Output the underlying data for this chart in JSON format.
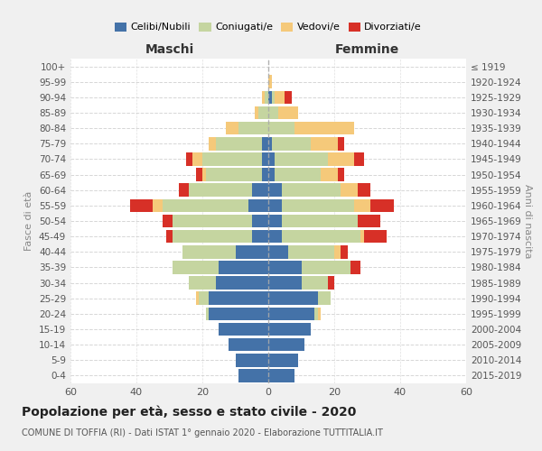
{
  "age_groups": [
    "0-4",
    "5-9",
    "10-14",
    "15-19",
    "20-24",
    "25-29",
    "30-34",
    "35-39",
    "40-44",
    "45-49",
    "50-54",
    "55-59",
    "60-64",
    "65-69",
    "70-74",
    "75-79",
    "80-84",
    "85-89",
    "90-94",
    "95-99",
    "100+"
  ],
  "birth_years": [
    "2015-2019",
    "2010-2014",
    "2005-2009",
    "2000-2004",
    "1995-1999",
    "1990-1994",
    "1985-1989",
    "1980-1984",
    "1975-1979",
    "1970-1974",
    "1965-1969",
    "1960-1964",
    "1955-1959",
    "1950-1954",
    "1945-1949",
    "1940-1944",
    "1935-1939",
    "1930-1934",
    "1925-1929",
    "1920-1924",
    "≤ 1919"
  ],
  "male": {
    "celibi": [
      9,
      10,
      12,
      15,
      18,
      18,
      16,
      15,
      10,
      5,
      5,
      6,
      5,
      2,
      2,
      2,
      0,
      0,
      0,
      0,
      0
    ],
    "coniugati": [
      0,
      0,
      0,
      0,
      1,
      3,
      8,
      14,
      16,
      24,
      24,
      26,
      19,
      17,
      18,
      14,
      9,
      3,
      1,
      0,
      0
    ],
    "vedovi": [
      0,
      0,
      0,
      0,
      0,
      1,
      0,
      0,
      0,
      0,
      0,
      3,
      0,
      1,
      3,
      2,
      4,
      1,
      1,
      0,
      0
    ],
    "divorziati": [
      0,
      0,
      0,
      0,
      0,
      0,
      0,
      0,
      0,
      2,
      3,
      7,
      3,
      2,
      2,
      0,
      0,
      0,
      0,
      0,
      0
    ]
  },
  "female": {
    "nubili": [
      8,
      9,
      11,
      13,
      14,
      15,
      10,
      10,
      6,
      4,
      4,
      4,
      4,
      2,
      2,
      1,
      0,
      0,
      1,
      0,
      0
    ],
    "coniugate": [
      0,
      0,
      0,
      0,
      1,
      4,
      8,
      15,
      14,
      24,
      23,
      22,
      18,
      14,
      16,
      12,
      8,
      3,
      1,
      0,
      0
    ],
    "vedove": [
      0,
      0,
      0,
      0,
      1,
      0,
      0,
      0,
      2,
      1,
      0,
      5,
      5,
      5,
      8,
      8,
      18,
      6,
      3,
      1,
      0
    ],
    "divorziate": [
      0,
      0,
      0,
      0,
      0,
      0,
      2,
      3,
      2,
      7,
      7,
      7,
      4,
      2,
      3,
      2,
      0,
      0,
      2,
      0,
      0
    ]
  },
  "colors": {
    "celibi": "#4472a8",
    "coniugati": "#c5d5a0",
    "vedovi": "#f5c97a",
    "divorziati": "#d73027"
  },
  "xlim": 60,
  "title": "Popolazione per età, sesso e stato civile - 2020",
  "subtitle": "COMUNE DI TOFFIA (RI) - Dati ISTAT 1° gennaio 2020 - Elaborazione TUTTITALIA.IT",
  "ylabel_left": "Fasce di età",
  "ylabel_right": "Anni di nascita",
  "xlabel_left": "Maschi",
  "xlabel_right": "Femmine",
  "bg_color": "#f0f0f0",
  "plot_bg_color": "#ffffff",
  "grid_color": "#cccccc",
  "bar_height": 0.85
}
